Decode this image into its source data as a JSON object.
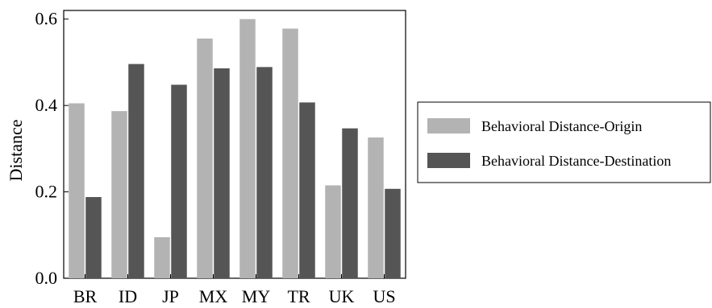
{
  "chart_data": {
    "type": "bar",
    "title": "",
    "xlabel": "",
    "ylabel": "Distance",
    "ylim": [
      0,
      0.62
    ],
    "yticks": [
      0.0,
      0.2,
      0.4,
      0.6
    ],
    "ytick_labels": [
      "0.0",
      "0.2",
      "0.4",
      "0.6"
    ],
    "categories": [
      "BR",
      "ID",
      "JP",
      "MX",
      "MY",
      "TR",
      "UK",
      "US"
    ],
    "series": [
      {
        "name": "Behavioral Distance-Origin",
        "color": "#b3b3b3",
        "values": [
          0.405,
          0.387,
          0.095,
          0.555,
          0.6,
          0.578,
          0.215,
          0.326
        ]
      },
      {
        "name": "Behavioral Distance-Destination",
        "color": "#555555",
        "values": [
          0.188,
          0.496,
          0.448,
          0.486,
          0.489,
          0.407,
          0.347,
          0.207
        ]
      }
    ],
    "grid": false,
    "legend_position": "right"
  }
}
